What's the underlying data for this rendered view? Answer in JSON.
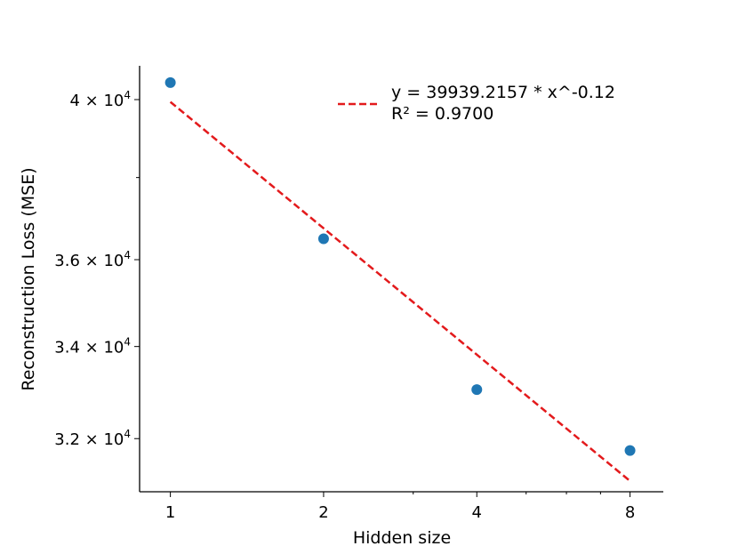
{
  "chart_data": {
    "type": "scatter",
    "xlabel": "Hidden size",
    "ylabel": "Reconstruction Loss (MSE)",
    "xscale": "log2",
    "yscale": "log",
    "xlim": [
      0.87,
      9.3
    ],
    "ylim": [
      30900,
      40900
    ],
    "x_ticks": [
      {
        "value": 1,
        "label": "1"
      },
      {
        "value": 2,
        "label": "2"
      },
      {
        "value": 4,
        "label": "4"
      },
      {
        "value": 8,
        "label": "8"
      }
    ],
    "y_ticks": [
      {
        "value": 32000,
        "mantissa": "3.2",
        "exp": "4"
      },
      {
        "value": 34000,
        "mantissa": "3.4",
        "exp": "4"
      },
      {
        "value": 36000,
        "mantissa": "3.6",
        "exp": "4"
      },
      {
        "value": 40000,
        "mantissa": "4",
        "exp": "4"
      }
    ],
    "y_minor_ticks": [
      38000
    ],
    "series": [
      {
        "kind": "scatter",
        "color": "#1f77b4",
        "points": [
          {
            "x": 1,
            "y": 40450
          },
          {
            "x": 2,
            "y": 36500
          },
          {
            "x": 4,
            "y": 33050
          },
          {
            "x": 8,
            "y": 31750
          }
        ]
      },
      {
        "kind": "fit",
        "name": "y = 39939.2157 * x^-0.12\nR² = 0.9700",
        "color": "#e31a1c",
        "style": "dashed",
        "a": 39939.2157,
        "b": -0.12,
        "x_range": [
          1,
          8
        ]
      }
    ],
    "legend": {
      "position": "top-right",
      "line1": "y = 39939.2157 * x^-0.12",
      "line2": "R² = 0.9700"
    },
    "grid": false
  }
}
